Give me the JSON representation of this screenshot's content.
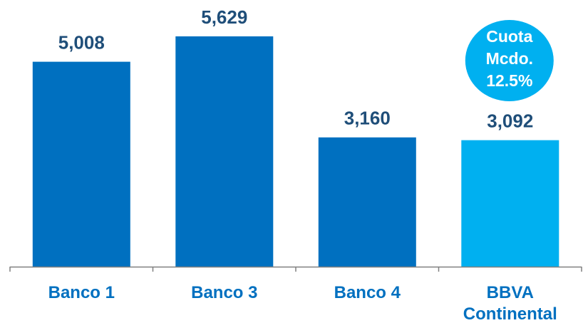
{
  "chart_data": {
    "type": "bar",
    "categories": [
      "Banco 1",
      "Banco 3",
      "Banco 4",
      "BBVA Continental"
    ],
    "category_lines": [
      [
        "Banco 1"
      ],
      [
        "Banco 3"
      ],
      [
        "Banco 4"
      ],
      [
        "BBVA",
        "Continental"
      ]
    ],
    "values": [
      5008,
      5629,
      3160,
      3092
    ],
    "value_labels": [
      "5,008",
      "5,629",
      "3,160",
      "3,092"
    ],
    "bar_colors": [
      "#0070c0",
      "#0070c0",
      "#0070c0",
      "#00b0f0"
    ],
    "label_color": "#1f4e79",
    "category_label_color": "#0070c0",
    "axis_color": "#808080",
    "title": "",
    "xlabel": "",
    "ylabel": "",
    "ylim": [
      0,
      6000
    ],
    "grid": false,
    "annotation": {
      "lines": [
        "Cuota",
        "Mcdo.",
        "12.5%"
      ],
      "fill": "#00b0f0",
      "text_color": "#ffffff",
      "anchor_category": "BBVA Continental"
    }
  }
}
